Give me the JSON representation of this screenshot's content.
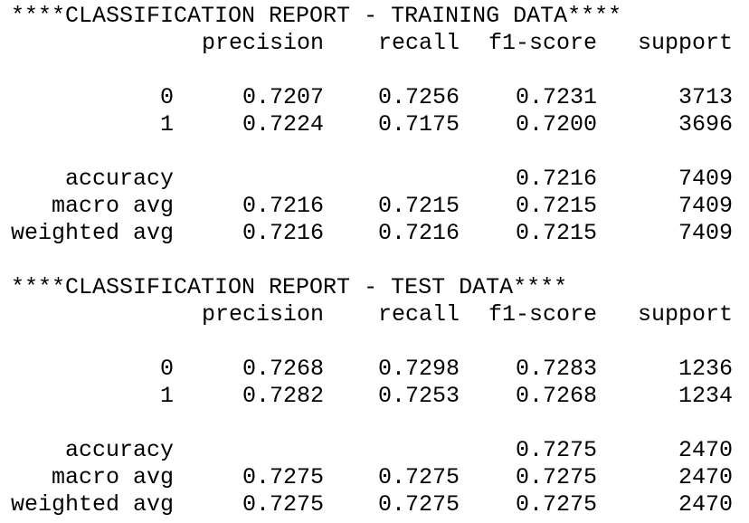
{
  "reports": [
    {
      "title": "****CLASSIFICATION REPORT - TRAINING DATA****",
      "columns": [
        "precision",
        "recall",
        "f1-score",
        "support"
      ],
      "rows": [
        {
          "label": "0",
          "cells": [
            "0.7207",
            "0.7256",
            "0.7231",
            "3713"
          ]
        },
        {
          "label": "1",
          "cells": [
            "0.7224",
            "0.7175",
            "0.7200",
            "3696"
          ]
        },
        {
          "label": "accuracy",
          "cells": [
            null,
            null,
            "0.7216",
            "7409"
          ]
        },
        {
          "label": "macro avg",
          "cells": [
            "0.7216",
            "0.7215",
            "0.7215",
            "7409"
          ]
        },
        {
          "label": "weighted avg",
          "cells": [
            "0.7216",
            "0.7216",
            "0.7215",
            "7409"
          ]
        }
      ]
    },
    {
      "title": "****CLASSIFICATION REPORT - TEST DATA****",
      "columns": [
        "precision",
        "recall",
        "f1-score",
        "support"
      ],
      "rows": [
        {
          "label": "0",
          "cells": [
            "0.7268",
            "0.7298",
            "0.7283",
            "1236"
          ]
        },
        {
          "label": "1",
          "cells": [
            "0.7282",
            "0.7253",
            "0.7268",
            "1234"
          ]
        },
        {
          "label": "accuracy",
          "cells": [
            null,
            null,
            "0.7275",
            "2470"
          ]
        },
        {
          "label": "macro avg",
          "cells": [
            "0.7275",
            "0.7275",
            "0.7275",
            "2470"
          ]
        },
        {
          "label": "weighted avg",
          "cells": [
            "0.7275",
            "0.7275",
            "0.7275",
            "2470"
          ]
        }
      ]
    }
  ]
}
